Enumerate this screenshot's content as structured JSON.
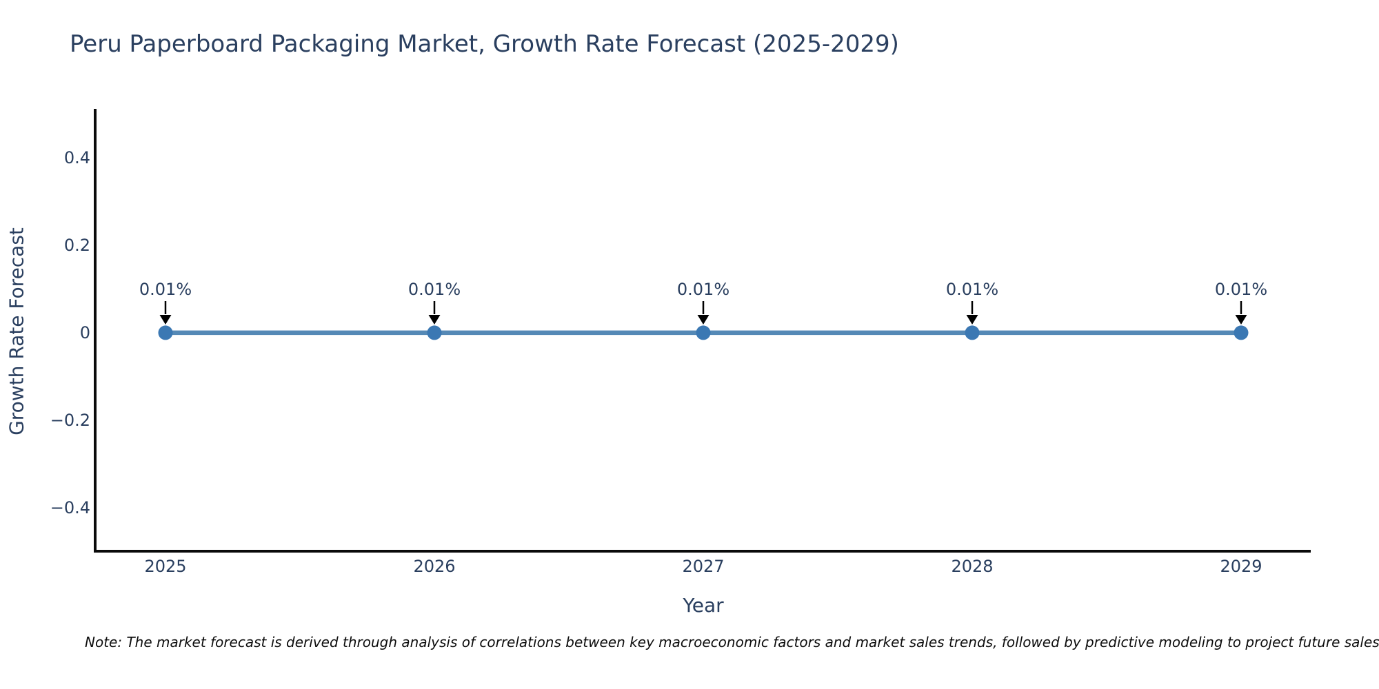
{
  "title": "Peru Paperboard Packaging Market, Growth Rate Forecast (2025-2029)",
  "note": "Note: The market forecast is derived through analysis of correlations between key macroeconomic factors and market sales trends, followed by predictive modeling to project future sales.",
  "colors": {
    "title_text": "#2a3f5f",
    "axis_text": "#2a3f5f",
    "line": "#5589b6",
    "marker": "#3b78b3",
    "axis_line": "#0a0a0a",
    "annotation_text": "#2a3f5f",
    "arrow": "#000000",
    "note_text": "#0d0d0d",
    "background": "#ffffff"
  },
  "chart_data": {
    "type": "line",
    "title": "Peru Paperboard Packaging Market, Growth Rate Forecast (2025-2029)",
    "xlabel": "Year",
    "ylabel": "Growth Rate Forecast",
    "x": [
      2025,
      2026,
      2027,
      2028,
      2029
    ],
    "x_ticks": [
      "2025",
      "2026",
      "2027",
      "2028",
      "2029"
    ],
    "values": [
      0.01,
      0.01,
      0.01,
      0.01,
      0.01
    ],
    "unit": "%",
    "point_labels": [
      "0.01%",
      "0.01%",
      "0.01%",
      "0.01%",
      "0.01%"
    ],
    "y_tick_labels": [
      "0.4",
      "0.2",
      "0",
      "−0.2",
      "−0.4"
    ],
    "y_tick_values": [
      0.4,
      0.2,
      0,
      -0.2,
      -0.4
    ],
    "ylim": [
      -0.5,
      0.51
    ],
    "grid": false,
    "legend": false,
    "marker_style": "circle",
    "annotation_style": "value label with down arrow at each point"
  }
}
